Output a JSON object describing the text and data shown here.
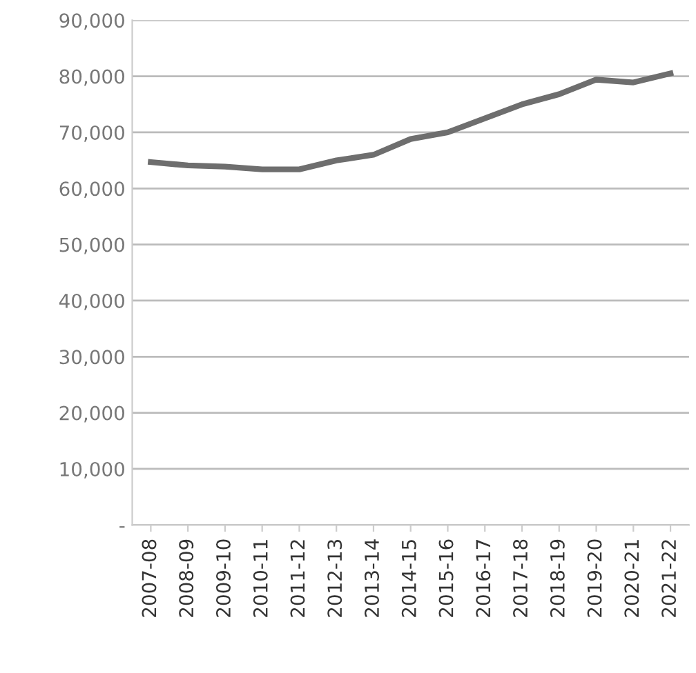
{
  "chart_data": {
    "type": "line",
    "categories": [
      "2007-08",
      "2008-09",
      "2009-10",
      "2010-11",
      "2011-12",
      "2012-13",
      "2013-14",
      "2014-15",
      "2015-16",
      "2016-17",
      "2017-18",
      "2018-19",
      "2019-20",
      "2020-21",
      "2021-22"
    ],
    "series": [
      {
        "color": "#6e6e6e",
        "values": [
          64700,
          64100,
          63900,
          63400,
          63400,
          65000,
          66000,
          68800,
          70000,
          72500,
          75000,
          76800,
          79400,
          78900,
          80500
        ]
      }
    ],
    "ylim": [
      0,
      90000
    ],
    "yticks": [
      {
        "value": 0,
        "label": "-"
      },
      {
        "value": 10000,
        "label": "10,000"
      },
      {
        "value": 20000,
        "label": "20,000"
      },
      {
        "value": 30000,
        "label": "30,000"
      },
      {
        "value": 40000,
        "label": "40,000"
      },
      {
        "value": 50000,
        "label": "50,000"
      },
      {
        "value": 60000,
        "label": "60,000"
      },
      {
        "value": 70000,
        "label": "70,000"
      },
      {
        "value": 80000,
        "label": "80,000"
      },
      {
        "value": 90000,
        "label": "90,000"
      }
    ],
    "grid": "y",
    "legend": false,
    "marker": "none",
    "line_style": "solid"
  }
}
